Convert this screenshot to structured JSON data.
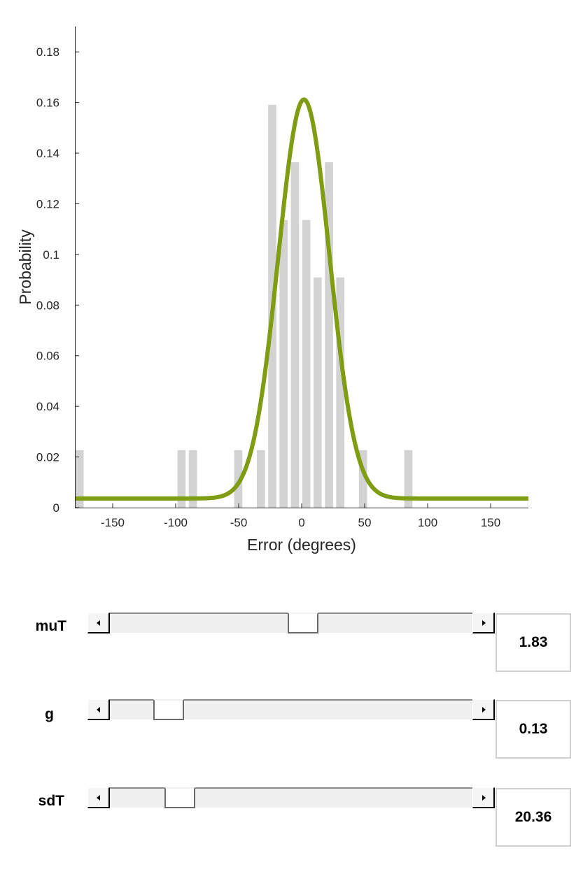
{
  "chart_data": {
    "type": "bar",
    "xlabel": "Error (degrees)",
    "ylabel": "Probability",
    "xlim": [
      -180,
      180
    ],
    "ylim": [
      0,
      0.19
    ],
    "xticks": [
      -150,
      -100,
      -50,
      0,
      50,
      100,
      150
    ],
    "xtick_labels": [
      "-150",
      "-100",
      "-50",
      "0",
      "50",
      "100",
      "150"
    ],
    "yticks": [
      0,
      0.02,
      0.04,
      0.06,
      0.08,
      0.1,
      0.12,
      0.14,
      0.16,
      0.18
    ],
    "ytick_labels": [
      "0",
      "0.02",
      "0.04",
      "0.06",
      "0.08",
      "0.1",
      "0.12",
      "0.14",
      "0.16",
      "0.18"
    ],
    "bin_width": 9,
    "bar_color": "#d3d3d3",
    "curve_color": "#7f9c13",
    "bars": [
      {
        "x": -175.5,
        "y": 0.0227
      },
      {
        "x": -94.5,
        "y": 0.0227
      },
      {
        "x": -85.5,
        "y": 0.0227
      },
      {
        "x": -49.5,
        "y": 0.0227
      },
      {
        "x": -31.5,
        "y": 0.0227
      },
      {
        "x": -22.5,
        "y": 0.1591
      },
      {
        "x": -13.5,
        "y": 0.1136
      },
      {
        "x": -4.5,
        "y": 0.1364
      },
      {
        "x": 4.5,
        "y": 0.1136
      },
      {
        "x": 13.5,
        "y": 0.0909
      },
      {
        "x": 22.5,
        "y": 0.1364
      },
      {
        "x": 31.5,
        "y": 0.0909
      },
      {
        "x": 49.5,
        "y": 0.0227
      },
      {
        "x": 85.5,
        "y": 0.0227
      }
    ],
    "curve": {
      "model": "von Mises + uniform",
      "muT": 1.83,
      "g": 0.13,
      "sdT": 20.36,
      "baseline": 0.0036,
      "peak": 0.1612
    }
  },
  "controls": [
    {
      "label": "muT",
      "value": "1.83",
      "position": 0.535
    },
    {
      "label": "g",
      "value": "0.13",
      "position": 0.13
    },
    {
      "label": "sdT",
      "value": "20.36",
      "position": 0.165
    }
  ]
}
